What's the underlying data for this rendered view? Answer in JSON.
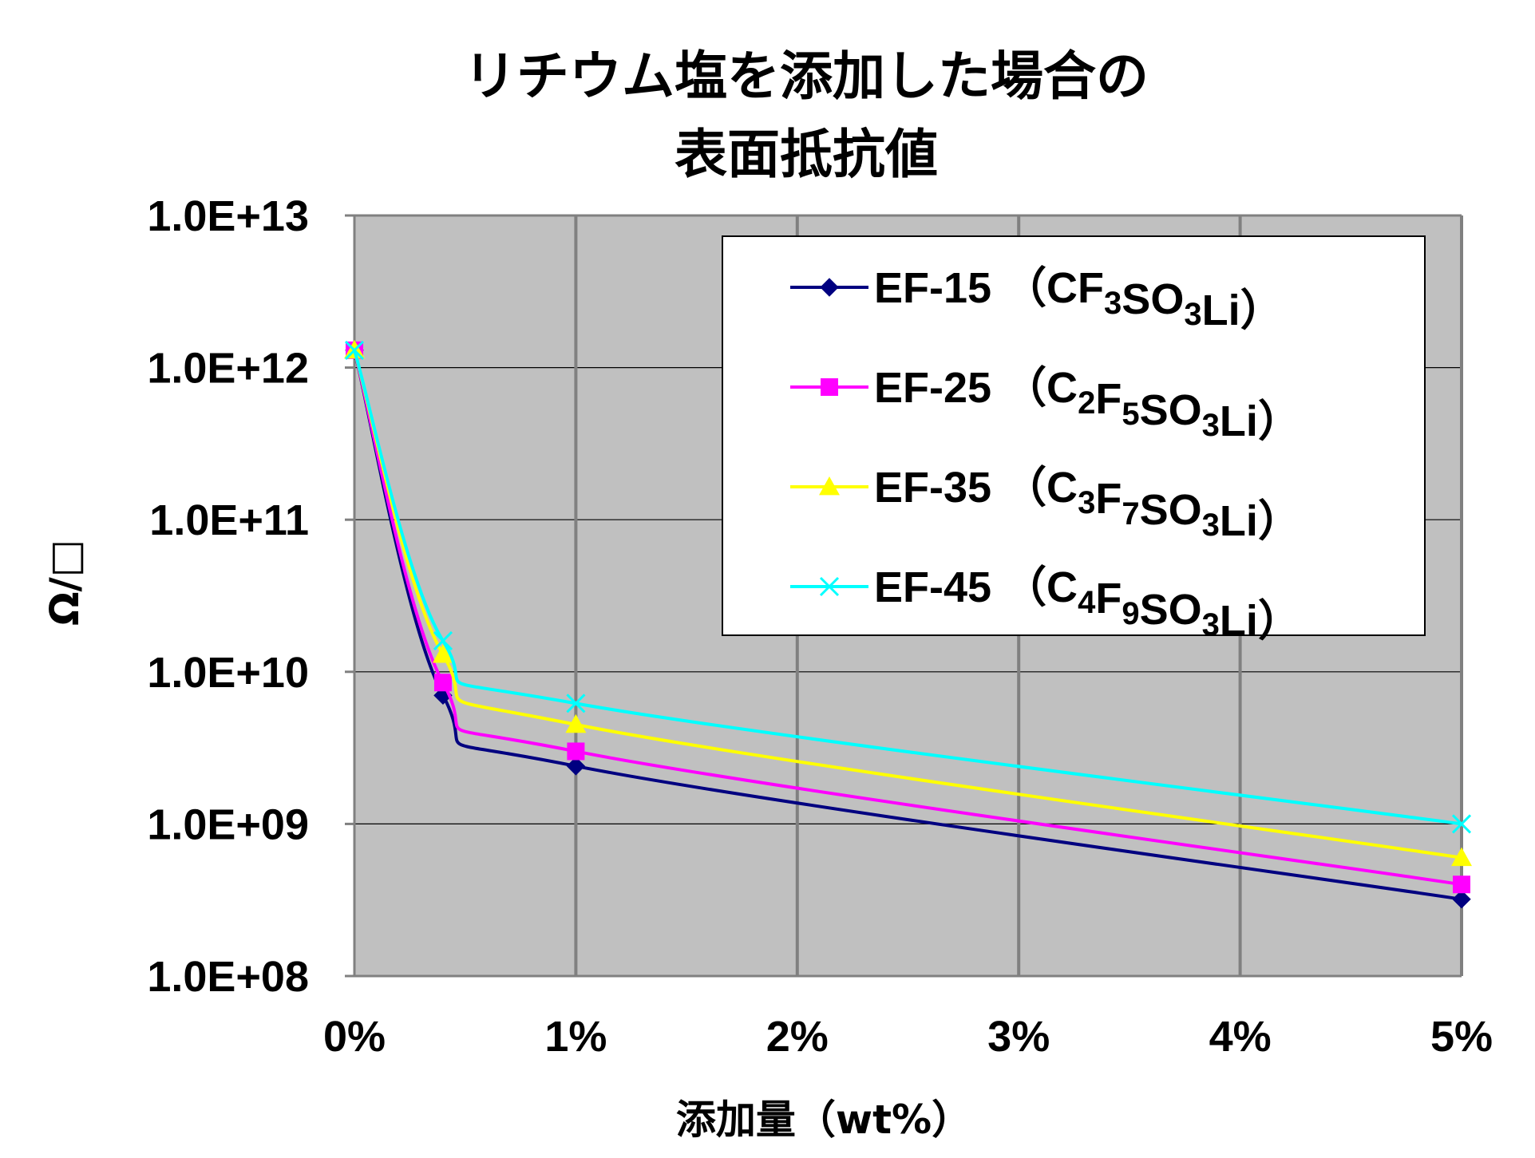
{
  "chart_data": {
    "type": "line",
    "title_lines": [
      "リチウム塩を添加した場合の",
      "表面抵抗値"
    ],
    "xlabel": "添加量（wt%）",
    "ylabel": "Ω/□",
    "x_ticks": [
      {
        "value": 0,
        "label": "0%"
      },
      {
        "value": 1,
        "label": "1%"
      },
      {
        "value": 2,
        "label": "2%"
      },
      {
        "value": 3,
        "label": "3%"
      },
      {
        "value": 4,
        "label": "4%"
      },
      {
        "value": 5,
        "label": "5%"
      }
    ],
    "y_ticks": [
      {
        "value": 100000000.0,
        "label": "1.0E+08"
      },
      {
        "value": 1000000000.0,
        "label": "1.0E+09"
      },
      {
        "value": 10000000000.0,
        "label": "1.0E+10"
      },
      {
        "value": 100000000000.0,
        "label": "1.0E+11"
      },
      {
        "value": 1000000000000.0,
        "label": "1.0E+12"
      },
      {
        "value": 10000000000000.0,
        "label": "1.0E+13"
      }
    ],
    "xlim": [
      0,
      5
    ],
    "ylim": [
      100000000.0,
      10000000000000.0
    ],
    "y_scale": "log",
    "grid": true,
    "plot_background": "#c0c0c0",
    "legend_position": "top-right",
    "x": [
      0,
      0.4,
      1,
      5
    ],
    "series": [
      {
        "name": "EF-15",
        "formula": [
          {
            "t": "（CF"
          },
          {
            "t": "3",
            "sub": true
          },
          {
            "t": "SO"
          },
          {
            "t": "3",
            "sub": true
          },
          {
            "t": "Li）"
          }
        ],
        "color": "#000080",
        "marker": "diamond",
        "values": [
          1300000000000.0,
          7000000000.0,
          2400000000.0,
          320000000.0
        ]
      },
      {
        "name": "EF-25",
        "formula": [
          {
            "t": "（C"
          },
          {
            "t": "2",
            "sub": true
          },
          {
            "t": "F"
          },
          {
            "t": "5",
            "sub": true
          },
          {
            "t": "SO"
          },
          {
            "t": "3",
            "sub": true
          },
          {
            "t": "Li）"
          }
        ],
        "color": "#ff00ff",
        "marker": "square",
        "values": [
          1300000000000.0,
          8500000000.0,
          3000000000.0,
          400000000.0
        ]
      },
      {
        "name": "EF-35",
        "formula": [
          {
            "t": "（C"
          },
          {
            "t": "3",
            "sub": true
          },
          {
            "t": "F"
          },
          {
            "t": "7",
            "sub": true
          },
          {
            "t": "SO"
          },
          {
            "t": "3",
            "sub": true
          },
          {
            "t": "Li）"
          }
        ],
        "color": "#ffff00",
        "marker": "triangle",
        "values": [
          1300000000000.0,
          13000000000.0,
          4500000000.0,
          600000000.0
        ]
      },
      {
        "name": "EF-45",
        "formula": [
          {
            "t": "（C"
          },
          {
            "t": "4",
            "sub": true
          },
          {
            "t": "F"
          },
          {
            "t": "9",
            "sub": true
          },
          {
            "t": "SO"
          },
          {
            "t": "3",
            "sub": true
          },
          {
            "t": "Li）"
          }
        ],
        "color": "#00ffff",
        "marker": "x",
        "values": [
          1300000000000.0,
          16000000000.0,
          6200000000.0,
          1000000000.0
        ]
      }
    ]
  }
}
